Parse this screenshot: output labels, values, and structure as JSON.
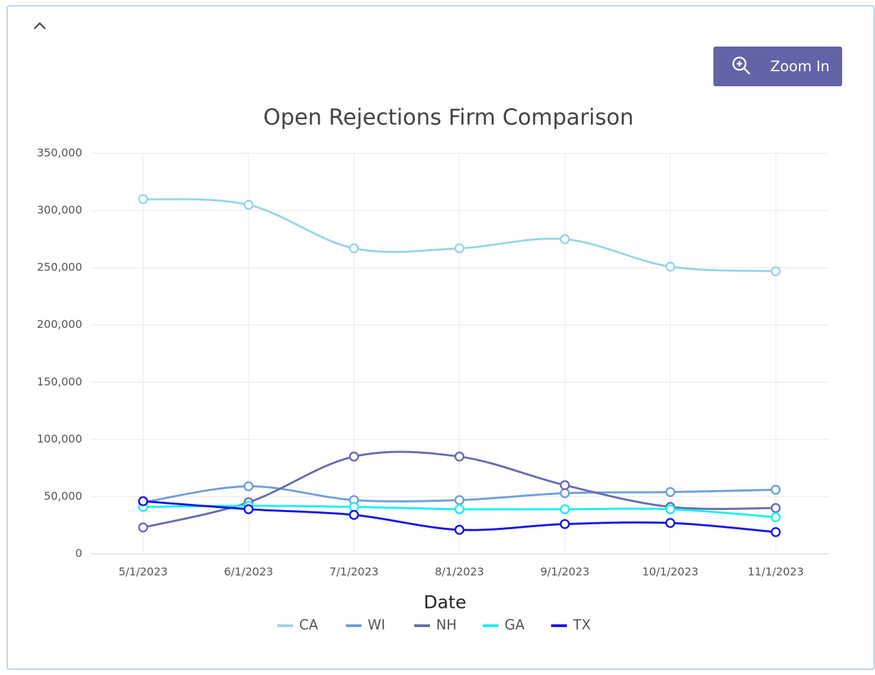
{
  "toolbar": {
    "zoom_label": "Zoom In"
  },
  "chart_data": {
    "type": "line",
    "title": "Open Rejections Firm Comparison",
    "x_label": "Date",
    "categories": [
      "5/1/2023",
      "6/1/2023",
      "7/1/2023",
      "8/1/2023",
      "9/1/2023",
      "10/1/2023",
      "11/1/2023"
    ],
    "series": [
      {
        "name": "CA",
        "color": "#97d5e6",
        "values": [
          310000,
          305000,
          267000,
          267000,
          275000,
          251000,
          247000
        ]
      },
      {
        "name": "WI",
        "color": "#6f9fd8",
        "values": [
          45000,
          59000,
          47000,
          47000,
          53000,
          54000,
          56000
        ]
      },
      {
        "name": "NH",
        "color": "#6a6bb0",
        "values": [
          23000,
          45000,
          85000,
          85000,
          60000,
          41000,
          40000
        ]
      },
      {
        "name": "GA",
        "color": "#19f0f5",
        "values": [
          41000,
          42000,
          41000,
          39000,
          39000,
          39000,
          32000
        ]
      },
      {
        "name": "TX",
        "color": "#1515e8",
        "values": [
          46000,
          39000,
          34000,
          21000,
          26000,
          27000,
          19000
        ]
      }
    ],
    "ylim": [
      0,
      350000
    ],
    "yticks": [
      0,
      {
        "value": 50000,
        "label": "50,000"
      },
      {
        "value": 100000,
        "label": "100,000"
      },
      {
        "value": 150000,
        "label": "150,000"
      },
      {
        "value": 200000,
        "label": "200,000"
      },
      {
        "value": 250000,
        "label": "250,000"
      },
      {
        "value": 300000,
        "label": "300,000"
      },
      {
        "value": 350000,
        "label": "350,000"
      }
    ],
    "grid": true,
    "smooth": true,
    "legend": "bottom"
  }
}
